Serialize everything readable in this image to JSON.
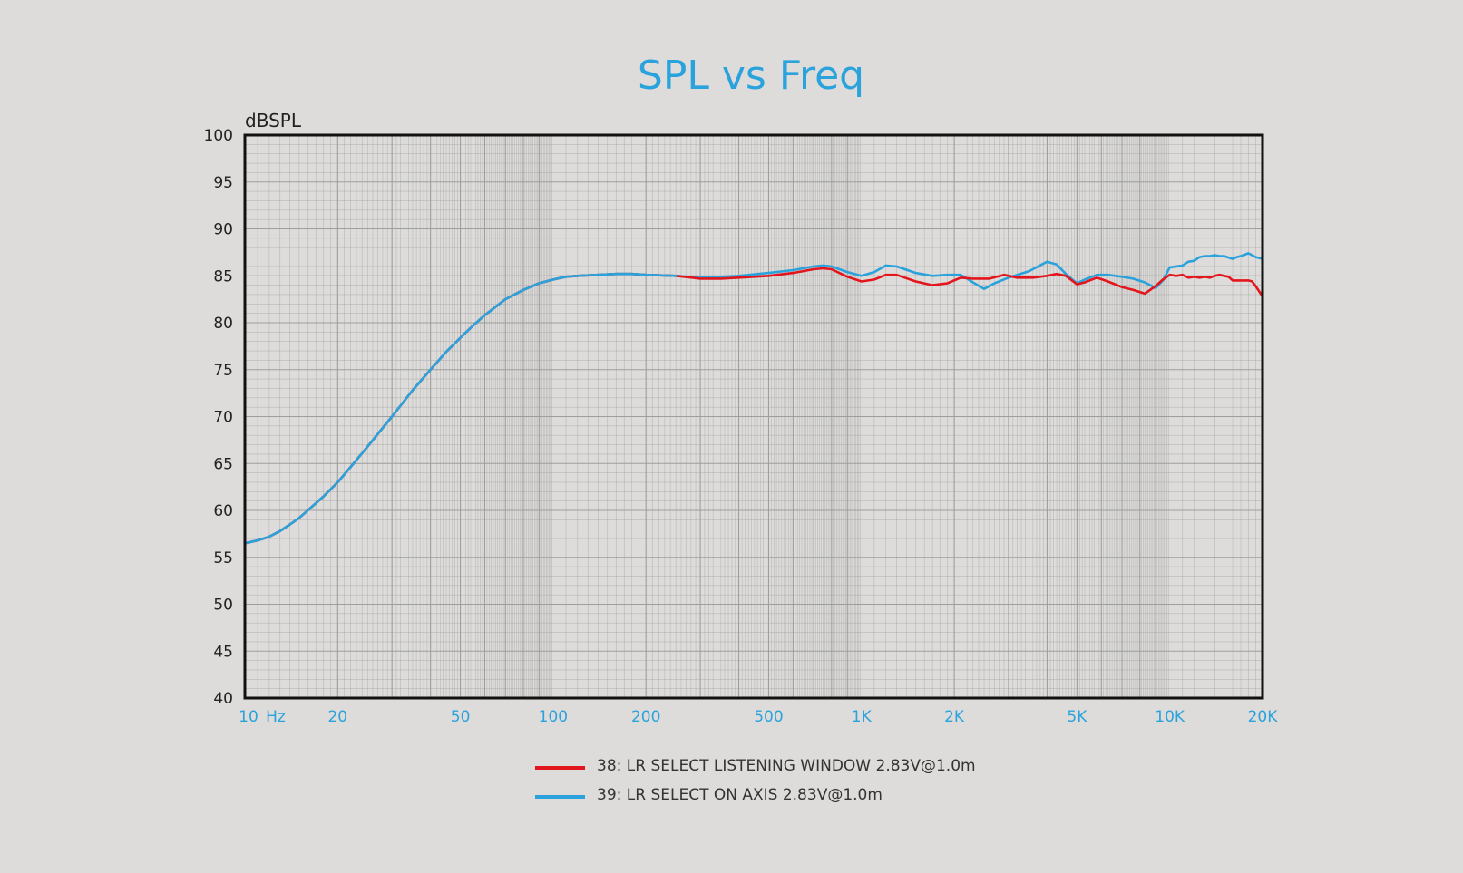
{
  "colors": {
    "background": "#dddcda",
    "title": "#2aa3dc",
    "axis_tick": "#2aa3dc",
    "series_listening_window": "#e3161d",
    "series_on_axis": "#2ba2db",
    "grid": "#9a9a9a",
    "frame": "#111111"
  },
  "chart_data": {
    "type": "line",
    "title": "SPL vs Freq",
    "ylabel": "dBSPL",
    "xlabel": "",
    "x_scale": "log",
    "xlim": [
      10,
      20000
    ],
    "ylim": [
      40,
      100
    ],
    "grid": true,
    "legend_position": "bottom-center",
    "x_tick_labels": [
      {
        "value": 10,
        "label": "10"
      },
      {
        "value": 20,
        "label": "20"
      },
      {
        "value": 50,
        "label": "50"
      },
      {
        "value": 100,
        "label": "100"
      },
      {
        "value": 200,
        "label": "200"
      },
      {
        "value": 500,
        "label": "500"
      },
      {
        "value": 1000,
        "label": "1K"
      },
      {
        "value": 2000,
        "label": "2K"
      },
      {
        "value": 5000,
        "label": "5K"
      },
      {
        "value": 10000,
        "label": "10K"
      },
      {
        "value": 20000,
        "label": "20K"
      }
    ],
    "x_unit_label": "Hz",
    "y_ticks": [
      40,
      45,
      50,
      55,
      60,
      65,
      70,
      75,
      80,
      85,
      90,
      95,
      100
    ],
    "series": [
      {
        "name": "38: LR SELECT LISTENING WINDOW 2.83V@1.0m",
        "color": "#e3161d",
        "x": [
          10,
          11,
          12,
          13,
          14,
          15,
          16,
          18,
          20,
          22,
          25,
          28,
          30,
          35,
          40,
          45,
          50,
          55,
          60,
          70,
          80,
          90,
          100,
          110,
          120,
          140,
          160,
          180,
          200,
          250,
          300,
          350,
          400,
          500,
          600,
          700,
          750,
          800,
          900,
          1000,
          1100,
          1200,
          1300,
          1500,
          1700,
          1900,
          2100,
          2300,
          2600,
          2900,
          3200,
          3600,
          4000,
          4300,
          4600,
          5000,
          5300,
          5800,
          6300,
          7000,
          7600,
          8300,
          9000,
          9500,
          10000,
          10500,
          11000,
          11500,
          12000,
          12500,
          13000,
          13500,
          14000,
          14500,
          15000,
          15500,
          16000,
          17000,
          18000,
          18500,
          19000,
          20000
        ],
        "y": [
          56.5,
          56.8,
          57.2,
          57.8,
          58.5,
          59.2,
          60.0,
          61.5,
          63.0,
          64.6,
          66.8,
          68.8,
          70.0,
          72.8,
          75.0,
          76.9,
          78.4,
          79.7,
          80.8,
          82.5,
          83.5,
          84.2,
          84.6,
          84.9,
          85.0,
          85.1,
          85.2,
          85.2,
          85.1,
          85.0,
          84.7,
          84.7,
          84.8,
          85.0,
          85.3,
          85.7,
          85.8,
          85.7,
          84.9,
          84.4,
          84.6,
          85.1,
          85.1,
          84.4,
          84.0,
          84.2,
          84.8,
          84.7,
          84.7,
          85.1,
          84.8,
          84.8,
          85.0,
          85.2,
          85.0,
          84.1,
          84.3,
          84.8,
          84.4,
          83.8,
          83.5,
          83.1,
          83.9,
          84.6,
          85.1,
          85.0,
          85.1,
          84.8,
          84.9,
          84.8,
          84.9,
          84.8,
          85.0,
          85.1,
          85.0,
          84.9,
          84.5,
          84.5,
          84.5,
          84.4,
          83.9,
          82.8
        ]
      },
      {
        "name": "39: LR SELECT ON AXIS 2.83V@1.0m",
        "color": "#2ba2db",
        "x": [
          10,
          11,
          12,
          13,
          14,
          15,
          16,
          18,
          20,
          22,
          25,
          28,
          30,
          35,
          40,
          45,
          50,
          55,
          60,
          70,
          80,
          90,
          100,
          110,
          120,
          140,
          160,
          180,
          200,
          250,
          300,
          350,
          400,
          500,
          600,
          700,
          750,
          800,
          900,
          1000,
          1100,
          1200,
          1300,
          1500,
          1700,
          1900,
          2100,
          2300,
          2500,
          2700,
          3000,
          3500,
          4000,
          4300,
          4600,
          5000,
          5300,
          5800,
          6300,
          7000,
          7600,
          8300,
          9000,
          9500,
          10000,
          10500,
          11000,
          11500,
          12000,
          12500,
          13000,
          13500,
          14000,
          14500,
          15000,
          16000,
          16500,
          17000,
          18000,
          19000,
          19500,
          20000
        ],
        "y": [
          56.5,
          56.8,
          57.2,
          57.8,
          58.5,
          59.2,
          60.0,
          61.5,
          63.0,
          64.6,
          66.8,
          68.8,
          70.0,
          72.8,
          75.0,
          76.9,
          78.4,
          79.7,
          80.8,
          82.5,
          83.5,
          84.2,
          84.6,
          84.9,
          85.0,
          85.1,
          85.2,
          85.2,
          85.1,
          85.0,
          84.8,
          84.9,
          85.0,
          85.3,
          85.6,
          86.0,
          86.1,
          86.0,
          85.4,
          85.0,
          85.4,
          86.1,
          86.0,
          85.3,
          85.0,
          85.1,
          85.1,
          84.3,
          83.6,
          84.2,
          84.8,
          85.5,
          86.5,
          86.2,
          85.2,
          84.2,
          84.6,
          85.1,
          85.1,
          84.9,
          84.7,
          84.3,
          83.7,
          84.5,
          85.9,
          86.0,
          86.1,
          86.5,
          86.6,
          87.0,
          87.1,
          87.1,
          87.2,
          87.1,
          87.1,
          86.8,
          87.0,
          87.1,
          87.4,
          87.0,
          86.9,
          86.8
        ]
      }
    ]
  }
}
